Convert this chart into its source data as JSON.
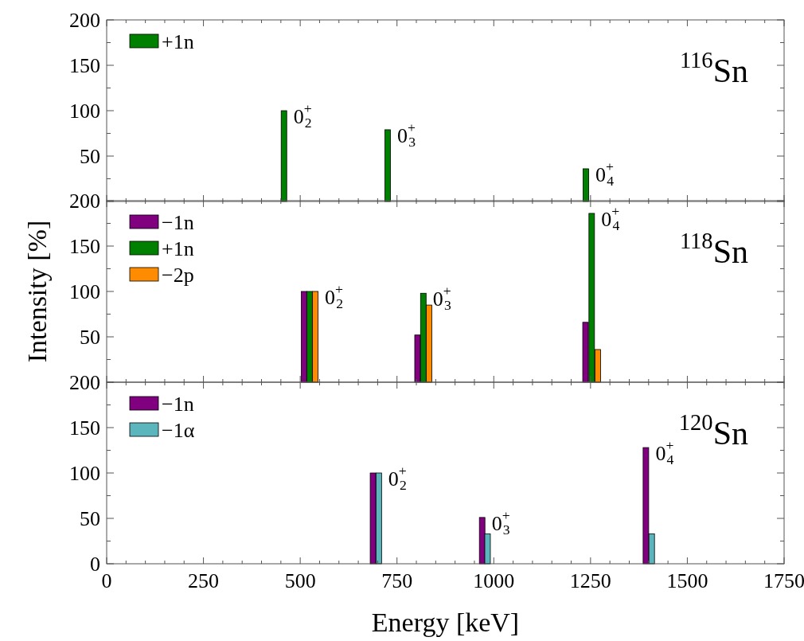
{
  "chart_data": [
    {
      "type": "bar",
      "legend": "top left",
      "tick_labels": "y",
      "xlim": [
        0,
        1750
      ],
      "ylim": [
        0,
        200
      ],
      "xticks": [
        0,
        {
          "value": 50,
          "label": null
        },
        {
          "value": 100,
          "label": null
        },
        {
          "value": 150,
          "label": null
        },
        {
          "value": 200,
          "label": null
        },
        250,
        {
          "value": 300,
          "label": null
        },
        {
          "value": 350,
          "label": null
        },
        {
          "value": 400,
          "label": null
        },
        {
          "value": 450,
          "label": null
        },
        500,
        {
          "value": 550,
          "label": null
        },
        {
          "value": 600,
          "label": null
        },
        {
          "value": 650,
          "label": null
        },
        {
          "value": 700,
          "label": null
        },
        750,
        {
          "value": 800,
          "label": null
        },
        {
          "value": 850,
          "label": null
        },
        {
          "value": 900,
          "label": null
        },
        {
          "value": 950,
          "label": null
        },
        1000,
        {
          "value": 1050,
          "label": null
        },
        {
          "value": 1100,
          "label": null
        },
        {
          "value": 1150,
          "label": null
        },
        {
          "value": 1200,
          "label": null
        },
        1250,
        {
          "value": 1300,
          "label": null
        },
        {
          "value": 1350,
          "label": null
        },
        {
          "value": 1400,
          "label": null
        },
        {
          "value": 1450,
          "label": null
        },
        1500,
        {
          "value": 1550,
          "label": null
        },
        {
          "value": 1600,
          "label": null
        },
        {
          "value": 1650,
          "label": null
        },
        {
          "value": 1700,
          "label": null
        },
        1750
      ],
      "yticks": [
        {
          "value": 0,
          "label": null
        },
        {
          "value": 25,
          "label": null
        },
        50,
        {
          "value": 75,
          "label": null
        },
        100,
        {
          "value": 125,
          "label": null
        },
        150,
        {
          "value": 175,
          "label": null
        },
        200
      ],
      "series": [
        {
          "name": "+1n",
          "color": "#008000",
          "x": [
            458,
            726,
            1238
          ],
          "values": [
            100,
            79,
            36
          ]
        }
      ],
      "annotations": [
        "$^{116}$Sn",
        {
          "text": "0$^{+}$$_{2}$",
          "x": 458,
          "y": 100
        },
        {
          "text": "0$^{+}$$_{3}$",
          "x": 726,
          "y": 79
        },
        {
          "text": "0$^{+}$$_{4}$",
          "x": 1238,
          "y": 36
        }
      ]
    },
    {
      "type": "bar",
      "legend": "top left",
      "tick_labels": "y",
      "ylabel": "Intensity [%]",
      "xlim": [
        0,
        1750
      ],
      "ylim": [
        0,
        200
      ],
      "xticks": [
        0,
        {
          "value": 50,
          "label": null
        },
        {
          "value": 100,
          "label": null
        },
        {
          "value": 150,
          "label": null
        },
        {
          "value": 200,
          "label": null
        },
        250,
        {
          "value": 300,
          "label": null
        },
        {
          "value": 350,
          "label": null
        },
        {
          "value": 400,
          "label": null
        },
        {
          "value": 450,
          "label": null
        },
        500,
        {
          "value": 550,
          "label": null
        },
        {
          "value": 600,
          "label": null
        },
        {
          "value": 650,
          "label": null
        },
        {
          "value": 700,
          "label": null
        },
        750,
        {
          "value": 800,
          "label": null
        },
        {
          "value": 850,
          "label": null
        },
        {
          "value": 900,
          "label": null
        },
        {
          "value": 950,
          "label": null
        },
        1000,
        {
          "value": 1050,
          "label": null
        },
        {
          "value": 1100,
          "label": null
        },
        {
          "value": 1150,
          "label": null
        },
        {
          "value": 1200,
          "label": null
        },
        1250,
        {
          "value": 1300,
          "label": null
        },
        {
          "value": 1350,
          "label": null
        },
        {
          "value": 1400,
          "label": null
        },
        {
          "value": 1450,
          "label": null
        },
        1500,
        {
          "value": 1550,
          "label": null
        },
        {
          "value": 1600,
          "label": null
        },
        {
          "value": 1650,
          "label": null
        },
        {
          "value": 1700,
          "label": null
        },
        1750
      ],
      "yticks": [
        {
          "value": 0,
          "label": null
        },
        {
          "value": 25,
          "label": null
        },
        50,
        {
          "value": 75,
          "label": null
        },
        100,
        {
          "value": 125,
          "label": null
        },
        150,
        {
          "value": 175,
          "label": null
        },
        200
      ],
      "series": [
        {
          "name": "−1n",
          "color": "#800080",
          "x": [
            510,
            803,
            1237
          ],
          "values": [
            100,
            52,
            66
          ]
        },
        {
          "name": "+1n",
          "color": "#008000",
          "x": [
            524,
            818,
            1253
          ],
          "values": [
            100,
            98,
            186
          ]
        },
        {
          "name": "−2p",
          "color": "#ff8c00",
          "x": [
            539,
            833,
            1269
          ],
          "values": [
            100,
            85,
            36
          ]
        }
      ],
      "annotations": [
        "$^{118}$Sn",
        {
          "text": "0$^{+}$$_{2}$",
          "x": 539,
          "y": 100
        },
        {
          "text": "0$^{+}$$_{3}$",
          "x": 818,
          "y": 98
        },
        {
          "text": "0$^{+}$$_{4}$",
          "x": 1253,
          "y": 186
        }
      ]
    },
    {
      "type": "bar",
      "legend": "top left",
      "xlabel": "Energy [keV]",
      "xlim": [
        0,
        1750
      ],
      "ylim": [
        0,
        200
      ],
      "xticks": [
        0,
        {
          "value": 50,
          "label": null
        },
        {
          "value": 100,
          "label": null
        },
        {
          "value": 150,
          "label": null
        },
        {
          "value": 200,
          "label": null
        },
        250,
        {
          "value": 300,
          "label": null
        },
        {
          "value": 350,
          "label": null
        },
        {
          "value": 400,
          "label": null
        },
        {
          "value": 450,
          "label": null
        },
        500,
        {
          "value": 550,
          "label": null
        },
        {
          "value": 600,
          "label": null
        },
        {
          "value": 650,
          "label": null
        },
        {
          "value": 700,
          "label": null
        },
        750,
        {
          "value": 800,
          "label": null
        },
        {
          "value": 850,
          "label": null
        },
        {
          "value": 900,
          "label": null
        },
        {
          "value": 950,
          "label": null
        },
        1000,
        {
          "value": 1050,
          "label": null
        },
        {
          "value": 1100,
          "label": null
        },
        {
          "value": 1150,
          "label": null
        },
        {
          "value": 1200,
          "label": null
        },
        1250,
        {
          "value": 1300,
          "label": null
        },
        {
          "value": 1350,
          "label": null
        },
        {
          "value": 1400,
          "label": null
        },
        {
          "value": 1450,
          "label": null
        },
        1500,
        {
          "value": 1550,
          "label": null
        },
        {
          "value": 1600,
          "label": null
        },
        {
          "value": 1650,
          "label": null
        },
        {
          "value": 1700,
          "label": null
        },
        1750
      ],
      "yticks": [
        0,
        {
          "value": 25,
          "label": null
        },
        50,
        {
          "value": 75,
          "label": null
        },
        100,
        {
          "value": 125,
          "label": null
        },
        150,
        {
          "value": 175,
          "label": null
        },
        200
      ],
      "series": [
        {
          "name": "−1n",
          "color": "#800080",
          "x": [
            688,
            970,
            1393
          ],
          "values": [
            100,
            51,
            128
          ]
        },
        {
          "name": "−1α",
          "color": "#5bb5bc",
          "x": [
            703,
            984,
            1408
          ],
          "values": [
            100,
            33,
            33
          ]
        }
      ],
      "annotations": [
        "$^{120}$Sn",
        {
          "text": "0$^{+}$$_{2}$",
          "x": 703,
          "y": 100
        },
        {
          "text": "0$^{+}$$_{3}$",
          "x": 970,
          "y": 51
        },
        {
          "text": "0$^{+}$$_{4}$",
          "x": 1393,
          "y": 128
        }
      ]
    }
  ]
}
